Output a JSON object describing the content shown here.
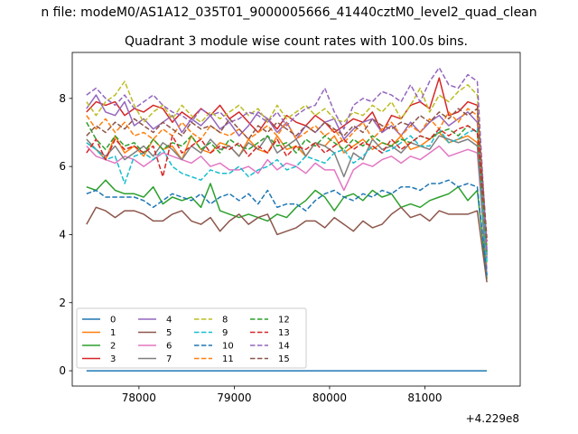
{
  "figure": {
    "suptitle": "n file: modeM0/AS1A12_035T01_9000005666_41440cztM0_level2_quad_clean",
    "title": "Quadrant 3 module wise count rates with 100.0s bins.",
    "x_offset_label": "+4.229e8"
  },
  "chart_data": {
    "type": "line",
    "title": "Quadrant 3 module wise count rates with 100.0s bins.",
    "xlabel": "",
    "ylabel": "",
    "x_offset": 422900000,
    "xlim": [
      77300,
      82000
    ],
    "ylim": [
      -0.45,
      9.35
    ],
    "x_ticks": [
      78000,
      79000,
      80000,
      81000
    ],
    "x_tick_labels": [
      "78000",
      "79000",
      "80000",
      "81000"
    ],
    "y_ticks": [
      0,
      2,
      4,
      6,
      8
    ],
    "y_tick_labels": [
      "0",
      "2",
      "4",
      "6",
      "8"
    ],
    "x": [
      77450,
      77550,
      77650,
      77750,
      77850,
      77950,
      78050,
      78150,
      78250,
      78350,
      78450,
      78550,
      78650,
      78750,
      78850,
      78950,
      79050,
      79150,
      79250,
      79350,
      79450,
      79550,
      79650,
      79750,
      79850,
      79950,
      80050,
      80150,
      80250,
      80350,
      80450,
      80550,
      80650,
      80750,
      80850,
      80950,
      81050,
      81150,
      81250,
      81350,
      81450,
      81550,
      81650
    ],
    "legend": {
      "placement": "lower-left",
      "columns": 4
    },
    "series": [
      {
        "name": "0",
        "color": "#1f77b4",
        "dash": "solid",
        "values": [
          0,
          0,
          0,
          0,
          0,
          0,
          0,
          0,
          0,
          0,
          0,
          0,
          0,
          0,
          0,
          0,
          0,
          0,
          0,
          0,
          0,
          0,
          0,
          0,
          0,
          0,
          0,
          0,
          0,
          0,
          0,
          0,
          0,
          0,
          0,
          0,
          0,
          0,
          0,
          0,
          0,
          0,
          0
        ]
      },
      {
        "name": "1",
        "color": "#ff7f0e",
        "dash": "solid",
        "values": [
          6.7,
          6.5,
          6.2,
          6.9,
          6.4,
          6.6,
          6.3,
          6.8,
          6.5,
          6.6,
          6.2,
          6.9,
          6.5,
          6.4,
          6.7,
          6.6,
          6.3,
          6.8,
          6.5,
          6.4,
          6.9,
          6.5,
          6.6,
          6.3,
          6.7,
          6.6,
          6.9,
          6.4,
          6.6,
          6.8,
          6.5,
          6.7,
          6.6,
          6.9,
          6.5,
          6.6,
          6.8,
          7.0,
          6.7,
          6.8,
          6.9,
          6.7,
          3.6
        ]
      },
      {
        "name": "2",
        "color": "#2ca02c",
        "dash": "solid",
        "values": [
          5.4,
          5.3,
          5.6,
          5.3,
          5.2,
          5.2,
          5.1,
          5.4,
          4.9,
          5.1,
          5.0,
          5.1,
          4.8,
          5.5,
          4.7,
          4.6,
          4.5,
          4.6,
          4.5,
          4.4,
          4.6,
          4.5,
          4.8,
          5.0,
          5.3,
          5.1,
          4.7,
          5.1,
          5.2,
          5.0,
          5.3,
          5.1,
          5.2,
          4.8,
          4.9,
          4.8,
          5.0,
          5.1,
          5.2,
          5.4,
          5.0,
          5.3,
          2.7
        ]
      },
      {
        "name": "3",
        "color": "#d62728",
        "dash": "solid",
        "values": [
          7.6,
          7.9,
          7.8,
          7.9,
          7.5,
          7.7,
          7.6,
          7.8,
          7.7,
          7.3,
          7.6,
          7.4,
          7.7,
          7.5,
          7.8,
          7.4,
          7.6,
          7.3,
          7.0,
          7.4,
          7.1,
          7.5,
          7.3,
          7.2,
          7.5,
          7.3,
          7.0,
          7.2,
          7.4,
          7.3,
          7.6,
          7.0,
          7.5,
          7.4,
          7.8,
          7.9,
          7.7,
          8.6,
          7.5,
          7.6,
          7.9,
          7.8,
          3.4
        ]
      },
      {
        "name": "4",
        "color": "#9467bd",
        "dash": "solid",
        "values": [
          7.7,
          8.1,
          7.6,
          7.5,
          7.9,
          7.2,
          7.4,
          7.1,
          7.3,
          7.5,
          7.0,
          7.4,
          7.2,
          7.5,
          7.1,
          7.3,
          6.9,
          7.2,
          7.6,
          7.4,
          7.0,
          7.3,
          6.8,
          7.2,
          7.0,
          7.3,
          7.4,
          6.8,
          7.1,
          7.3,
          7.4,
          7.0,
          7.2,
          6.9,
          7.3,
          7.0,
          7.3,
          7.5,
          7.2,
          7.4,
          7.6,
          7.3,
          3.3
        ]
      },
      {
        "name": "5",
        "color": "#8c564b",
        "dash": "solid",
        "values": [
          4.3,
          4.8,
          4.7,
          4.5,
          4.7,
          4.7,
          4.6,
          4.4,
          4.4,
          4.6,
          4.7,
          4.4,
          4.3,
          4.5,
          4.1,
          4.4,
          4.6,
          4.3,
          4.5,
          4.6,
          4.0,
          4.1,
          4.2,
          4.4,
          4.4,
          4.2,
          4.5,
          4.3,
          4.1,
          4.4,
          4.2,
          4.3,
          4.6,
          4.8,
          4.5,
          4.6,
          4.4,
          4.7,
          4.6,
          4.6,
          4.6,
          4.7,
          2.6
        ]
      },
      {
        "name": "6",
        "color": "#e377c2",
        "dash": "solid",
        "values": [
          6.6,
          6.3,
          6.2,
          6.1,
          6.3,
          6.2,
          6.0,
          6.2,
          6.4,
          6.3,
          6.2,
          6.1,
          6.3,
          6.0,
          6.1,
          5.9,
          5.9,
          6.0,
          5.8,
          6.2,
          5.9,
          6.1,
          6.0,
          5.8,
          6.1,
          5.9,
          5.9,
          5.3,
          5.9,
          6.1,
          6.0,
          6.2,
          6.3,
          6.1,
          6.3,
          6.2,
          6.4,
          6.6,
          6.3,
          6.4,
          6.5,
          6.4,
          3.0
        ]
      },
      {
        "name": "7",
        "color": "#7f7f7f",
        "dash": "solid",
        "values": [
          6.8,
          6.5,
          6.3,
          6.6,
          6.2,
          6.4,
          6.6,
          6.3,
          6.7,
          6.5,
          6.2,
          6.6,
          6.4,
          6.8,
          6.5,
          6.6,
          6.3,
          6.7,
          6.5,
          6.9,
          6.4,
          6.6,
          6.8,
          6.3,
          6.7,
          6.6,
          6.4,
          5.7,
          6.4,
          6.2,
          6.8,
          6.5,
          6.6,
          6.4,
          6.7,
          6.6,
          6.5,
          6.9,
          6.8,
          6.7,
          6.8,
          6.6,
          2.8
        ]
      },
      {
        "name": "8",
        "color": "#bcbd22",
        "dash": "dashed",
        "values": [
          7.9,
          7.5,
          7.9,
          8.1,
          8.5,
          7.8,
          7.3,
          7.6,
          7.8,
          7.4,
          7.8,
          7.5,
          7.3,
          7.6,
          7.4,
          7.6,
          7.8,
          7.5,
          7.7,
          7.3,
          7.8,
          7.4,
          7.6,
          7.8,
          7.5,
          7.7,
          7.4,
          7.3,
          7.6,
          7.5,
          7.8,
          7.6,
          7.9,
          7.4,
          7.8,
          8.3,
          7.6,
          8.1,
          7.9,
          8.2,
          8.4,
          8.1,
          3.1
        ]
      },
      {
        "name": "9",
        "color": "#17becf",
        "dash": "dashed",
        "values": [
          6.7,
          6.5,
          6.2,
          6.3,
          5.5,
          6.3,
          6.4,
          6.2,
          6.5,
          6.0,
          5.8,
          5.7,
          5.6,
          5.9,
          5.8,
          5.8,
          6.0,
          5.7,
          5.9,
          6.0,
          6.2,
          5.9,
          6.0,
          6.3,
          6.2,
          6.1,
          6.4,
          6.5,
          6.1,
          6.3,
          6.6,
          6.4,
          6.5,
          6.7,
          6.9,
          6.6,
          6.6,
          7.1,
          6.7,
          6.8,
          7.0,
          7.1,
          3.2
        ]
      },
      {
        "name": "10",
        "color": "#1f77b4",
        "dash": "dashed",
        "values": [
          5.2,
          5.3,
          5.1,
          5.1,
          5.1,
          5.1,
          5.0,
          4.8,
          5.0,
          5.2,
          5.1,
          5.0,
          5.2,
          4.9,
          5.1,
          5.2,
          5.0,
          5.2,
          4.9,
          5.3,
          4.8,
          4.9,
          4.9,
          4.7,
          5.0,
          5.2,
          5.3,
          5.1,
          5.0,
          5.2,
          5.1,
          5.3,
          5.2,
          5.4,
          5.4,
          5.3,
          5.5,
          5.5,
          5.6,
          5.4,
          5.5,
          5.4,
          2.8
        ]
      },
      {
        "name": "11",
        "color": "#ff7f0e",
        "dash": "dashed",
        "values": [
          7.5,
          7.1,
          7.4,
          7.0,
          7.3,
          6.9,
          7.0,
          6.8,
          7.1,
          6.9,
          7.3,
          7.0,
          6.8,
          7.2,
          7.0,
          6.9,
          7.1,
          6.8,
          7.0,
          7.2,
          6.9,
          7.3,
          6.8,
          7.0,
          7.2,
          6.9,
          7.1,
          6.7,
          7.0,
          7.3,
          6.8,
          7.1,
          7.3,
          6.9,
          7.2,
          7.0,
          7.4,
          7.1,
          7.6,
          7.3,
          7.7,
          7.5,
          3.7
        ]
      },
      {
        "name": "12",
        "color": "#2ca02c",
        "dash": "dashed",
        "values": [
          7.3,
          6.8,
          6.5,
          6.9,
          6.6,
          6.7,
          6.4,
          6.8,
          6.5,
          6.7,
          6.6,
          6.9,
          6.5,
          6.7,
          6.4,
          6.8,
          6.6,
          6.5,
          6.7,
          6.9,
          6.6,
          6.7,
          6.4,
          6.8,
          6.6,
          6.9,
          6.7,
          6.5,
          6.8,
          6.6,
          6.9,
          6.7,
          6.6,
          6.8,
          6.7,
          6.9,
          6.8,
          7.0,
          7.1,
          6.9,
          7.2,
          7.0,
          3.5
        ]
      },
      {
        "name": "13",
        "color": "#d62728",
        "dash": "dashed",
        "values": [
          6.4,
          6.8,
          6.2,
          6.8,
          6.5,
          6.6,
          6.4,
          6.6,
          5.7,
          6.9,
          6.4,
          6.6,
          6.8,
          6.4,
          6.6,
          6.5,
          6.7,
          6.3,
          6.6,
          6.4,
          6.8,
          6.3,
          6.6,
          6.5,
          6.7,
          6.4,
          6.6,
          6.8,
          6.5,
          6.7,
          6.6,
          6.4,
          6.8,
          6.5,
          6.7,
          6.9,
          6.8,
          7.1,
          6.9,
          7.1,
          7.2,
          7.0,
          3.8
        ]
      },
      {
        "name": "14",
        "color": "#9467bd",
        "dash": "dashed",
        "values": [
          8.1,
          8.3,
          8.0,
          7.8,
          8.1,
          7.7,
          7.9,
          8.1,
          7.8,
          7.6,
          7.5,
          7.3,
          7.7,
          7.5,
          7.6,
          7.3,
          7.4,
          7.6,
          7.5,
          7.3,
          7.6,
          7.2,
          7.5,
          7.7,
          7.8,
          8.3,
          7.6,
          7.1,
          7.8,
          8.0,
          7.9,
          8.2,
          8.1,
          7.9,
          8.4,
          7.9,
          8.5,
          8.9,
          8.4,
          8.3,
          8.7,
          8.5,
          3.5
        ]
      },
      {
        "name": "15",
        "color": "#8c564b",
        "dash": "dashed",
        "values": [
          6.9,
          7.2,
          7.0,
          7.3,
          7.1,
          7.4,
          7.2,
          7.0,
          7.3,
          7.1,
          6.9,
          7.3,
          7.1,
          7.2,
          7.0,
          7.4,
          7.1,
          6.8,
          7.2,
          7.0,
          7.3,
          7.1,
          6.9,
          7.2,
          7.0,
          7.3,
          7.1,
          6.9,
          7.2,
          7.0,
          7.4,
          7.2,
          7.1,
          7.3,
          7.2,
          7.5,
          7.3,
          7.6,
          7.4,
          7.7,
          7.5,
          7.7,
          3.9
        ]
      }
    ]
  }
}
